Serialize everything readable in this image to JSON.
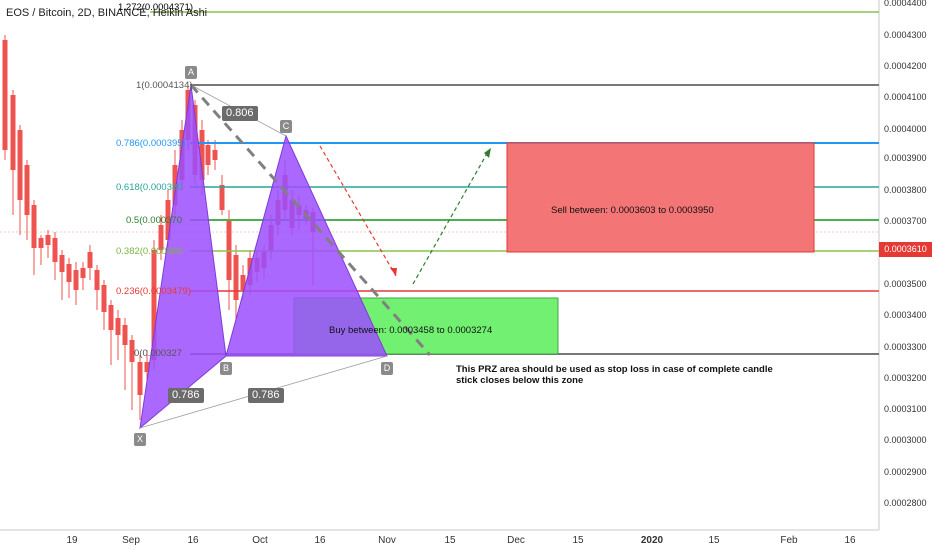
{
  "header": {
    "title": "EOS / Bitcoin, 2D, BINANCE, Heikin Ashi"
  },
  "price_axis": {
    "labels": [
      "0.0004400",
      "0.0004300",
      "0.0004200",
      "0.0004100",
      "0.0004000",
      "0.0003900",
      "0.0003800",
      "0.0003700",
      "0.0003500",
      "0.0003400",
      "0.0003300",
      "0.0003200",
      "0.0003100",
      "0.0003000",
      "0.0002900",
      "0.0002800"
    ],
    "last_price": "0.0003610"
  },
  "time_axis": {
    "labels": [
      "19",
      "Sep",
      "16",
      "Oct",
      "16",
      "Nov",
      "15",
      "Dec",
      "15",
      "2020",
      "15",
      "Feb",
      "16"
    ]
  },
  "fib_levels": [
    {
      "label": "1(0.0004134)",
      "color": "#787878"
    },
    {
      "label": "0.786(0.000395)",
      "color": "#2196f3"
    },
    {
      "label": "0.618(0.000380",
      "color": "#26a69a"
    },
    {
      "label": "0.5(0.000370",
      "color": "#4caf50"
    },
    {
      "label": "0.382(0.000360",
      "color": "#8bc34a"
    },
    {
      "label": "0.236(0.0003479)",
      "color": "#e53935"
    },
    {
      "label": "0(0.000327",
      "color": "#787878"
    }
  ],
  "top_level": {
    "label": "1.272(0.0004371)",
    "color": "#8bc34a"
  },
  "pattern_points": [
    "A",
    "C",
    "B",
    "D",
    "X"
  ],
  "ratios": [
    "0.806",
    "0.786",
    "0.786"
  ],
  "zones": {
    "sell": {
      "text": "Sell between: 0.0003603 to 0.0003950",
      "color": "#f47575"
    },
    "buy": {
      "text": "Buy between: 0.0003458 to 0.0003274",
      "color": "#72f072"
    }
  },
  "note": "This PRZ area should be used as stop loss in case of complete candle stick closes below this zone",
  "colors": {
    "up": "#26a69a",
    "down": "#ef5350",
    "pattern": "#9c4dff"
  }
}
